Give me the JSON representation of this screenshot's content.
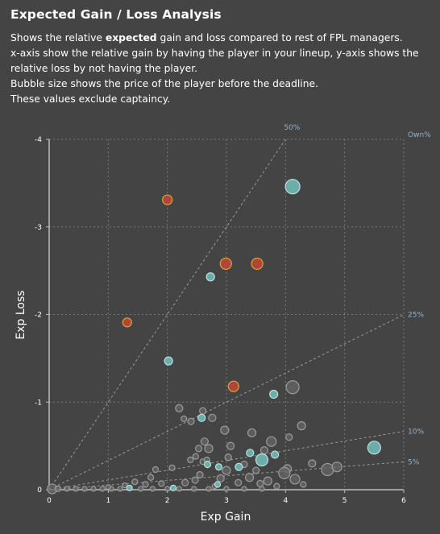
{
  "header": {
    "title": "Expected Gain / Loss Analysis",
    "desc_line1_pre": "Shows the relative ",
    "desc_line1_bold": "expected",
    "desc_line1_post": " gain and loss compared to rest of FPL managers.",
    "desc_line2": "x-axis show the relative gain by having the player in your lineup, y-axis shows the relative loss by not having the player.",
    "desc_line3": "Bubble size shows the price of the player before the deadline.",
    "desc_line4": "These values exclude captaincy."
  },
  "colors": {
    "background": "#444444",
    "grid": "#7a7a7a",
    "axis": "#bbbbbb",
    "own_line": "#9a9a9a",
    "own_label": "#8fb3c9",
    "red_fill": "#b5473a",
    "red_stroke": "#e0a23a",
    "teal_fill": "#6fb3b0",
    "teal_stroke": "#b8e0dd",
    "grey_fill": "#666666",
    "grey_stroke": "#9a9a9a"
  },
  "chart_data": {
    "type": "scatter",
    "xlabel": "Exp Gain",
    "ylabel": "Exp Loss",
    "xlim": [
      0,
      6
    ],
    "ylim": [
      0,
      -4
    ],
    "xticks": [
      0,
      1,
      2,
      3,
      4,
      5,
      6
    ],
    "yticks": [
      0,
      -1,
      -2,
      -3,
      -4
    ],
    "grid": true,
    "own_lines": [
      {
        "label": "50%",
        "slope": 1.0
      },
      {
        "label": "25%",
        "slope": 0.333
      },
      {
        "label": "10%",
        "slope": 0.111
      },
      {
        "label": "5%",
        "slope": 0.053
      }
    ],
    "own_axis_label": "Own%",
    "series": [
      {
        "kind": "red",
        "points": [
          {
            "x": 2.0,
            "y": -3.31,
            "s": 6.0
          },
          {
            "x": 2.99,
            "y": -2.58,
            "s": 7.0
          },
          {
            "x": 3.52,
            "y": -2.58,
            "s": 7.0
          },
          {
            "x": 1.32,
            "y": -1.91,
            "s": 5.5
          },
          {
            "x": 3.12,
            "y": -1.18,
            "s": 6.5
          }
        ]
      },
      {
        "kind": "teal",
        "points": [
          {
            "x": 4.12,
            "y": -3.46,
            "s": 9.0
          },
          {
            "x": 2.73,
            "y": -2.43,
            "s": 5.0
          },
          {
            "x": 2.02,
            "y": -1.47,
            "s": 5.0
          },
          {
            "x": 3.8,
            "y": -1.09,
            "s": 5.0
          },
          {
            "x": 5.5,
            "y": -0.48,
            "s": 8.0
          },
          {
            "x": 2.58,
            "y": -0.82,
            "s": 4.5
          },
          {
            "x": 3.6,
            "y": -0.34,
            "s": 7.5
          },
          {
            "x": 3.82,
            "y": -0.4,
            "s": 4.5
          },
          {
            "x": 3.4,
            "y": -0.42,
            "s": 4.5
          },
          {
            "x": 3.21,
            "y": -0.26,
            "s": 4.5
          },
          {
            "x": 2.87,
            "y": -0.26,
            "s": 4.0
          },
          {
            "x": 2.68,
            "y": -0.29,
            "s": 4.0
          },
          {
            "x": 2.85,
            "y": -0.06,
            "s": 3.5
          },
          {
            "x": 1.36,
            "y": -0.02,
            "s": 3.5
          },
          {
            "x": 2.1,
            "y": -0.02,
            "s": 3.5
          }
        ]
      },
      {
        "kind": "grey",
        "points": [
          {
            "x": 4.12,
            "y": -1.17,
            "s": 8.0
          },
          {
            "x": 2.2,
            "y": -0.93,
            "s": 4.5
          },
          {
            "x": 2.4,
            "y": -0.78,
            "s": 4.0
          },
          {
            "x": 2.28,
            "y": -0.81,
            "s": 3.5
          },
          {
            "x": 2.6,
            "y": -0.9,
            "s": 4.0
          },
          {
            "x": 2.76,
            "y": -0.82,
            "s": 4.5
          },
          {
            "x": 2.97,
            "y": -0.68,
            "s": 5.0
          },
          {
            "x": 3.43,
            "y": -0.65,
            "s": 5.0
          },
          {
            "x": 3.76,
            "y": -0.55,
            "s": 6.0
          },
          {
            "x": 4.27,
            "y": -0.73,
            "s": 5.0
          },
          {
            "x": 4.06,
            "y": -0.6,
            "s": 4.0
          },
          {
            "x": 4.45,
            "y": -0.3,
            "s": 4.5
          },
          {
            "x": 4.71,
            "y": -0.23,
            "s": 7.5
          },
          {
            "x": 4.87,
            "y": -0.26,
            "s": 6.0
          },
          {
            "x": 4.03,
            "y": -0.24,
            "s": 5.0
          },
          {
            "x": 3.98,
            "y": -0.19,
            "s": 7.0
          },
          {
            "x": 4.16,
            "y": -0.12,
            "s": 6.0
          },
          {
            "x": 3.7,
            "y": -0.1,
            "s": 5.0
          },
          {
            "x": 3.39,
            "y": -0.14,
            "s": 5.0
          },
          {
            "x": 3.0,
            "y": -0.22,
            "s": 5.0
          },
          {
            "x": 2.9,
            "y": -0.13,
            "s": 4.5
          },
          {
            "x": 2.53,
            "y": -0.47,
            "s": 4.0
          },
          {
            "x": 2.63,
            "y": -0.55,
            "s": 4.5
          },
          {
            "x": 2.7,
            "y": -0.47,
            "s": 5.0
          },
          {
            "x": 2.48,
            "y": -0.38,
            "s": 3.5
          },
          {
            "x": 2.39,
            "y": -0.34,
            "s": 3.5
          },
          {
            "x": 2.6,
            "y": -0.32,
            "s": 3.5
          },
          {
            "x": 2.67,
            "y": -0.34,
            "s": 3.5
          },
          {
            "x": 3.03,
            "y": -0.37,
            "s": 4.0
          },
          {
            "x": 3.07,
            "y": -0.5,
            "s": 4.5
          },
          {
            "x": 3.64,
            "y": -0.45,
            "s": 4.5
          },
          {
            "x": 3.3,
            "y": -0.29,
            "s": 4.0
          },
          {
            "x": 3.5,
            "y": -0.22,
            "s": 4.0
          },
          {
            "x": 2.08,
            "y": -0.25,
            "s": 3.5
          },
          {
            "x": 1.8,
            "y": -0.23,
            "s": 3.5
          },
          {
            "x": 1.72,
            "y": -0.14,
            "s": 3.5
          },
          {
            "x": 1.45,
            "y": -0.09,
            "s": 3.5
          },
          {
            "x": 1.63,
            "y": -0.06,
            "s": 3.5
          },
          {
            "x": 1.9,
            "y": -0.07,
            "s": 3.5
          },
          {
            "x": 2.3,
            "y": -0.08,
            "s": 4.0
          },
          {
            "x": 2.47,
            "y": -0.11,
            "s": 4.0
          },
          {
            "x": 2.55,
            "y": -0.17,
            "s": 4.0
          },
          {
            "x": 3.2,
            "y": -0.08,
            "s": 4.0
          },
          {
            "x": 3.57,
            "y": -0.07,
            "s": 4.0
          },
          {
            "x": 0.05,
            "y": -0.01,
            "s": 6.0
          },
          {
            "x": 0.15,
            "y": -0.01,
            "s": 3.5
          },
          {
            "x": 0.3,
            "y": -0.01,
            "s": 3.0
          },
          {
            "x": 0.45,
            "y": -0.01,
            "s": 3.0
          },
          {
            "x": 0.6,
            "y": -0.01,
            "s": 3.0
          },
          {
            "x": 0.75,
            "y": -0.01,
            "s": 3.0
          },
          {
            "x": 0.9,
            "y": -0.01,
            "s": 3.0
          },
          {
            "x": 1.05,
            "y": -0.01,
            "s": 3.0
          },
          {
            "x": 1.2,
            "y": -0.01,
            "s": 3.0
          },
          {
            "x": 1.55,
            "y": -0.01,
            "s": 3.0
          },
          {
            "x": 1.75,
            "y": -0.01,
            "s": 3.0
          },
          {
            "x": 2.0,
            "y": -0.01,
            "s": 3.0
          },
          {
            "x": 2.2,
            "y": -0.01,
            "s": 3.0
          },
          {
            "x": 2.45,
            "y": -0.01,
            "s": 3.0
          },
          {
            "x": 2.7,
            "y": -0.01,
            "s": 3.0
          },
          {
            "x": 3.0,
            "y": -0.01,
            "s": 3.0
          },
          {
            "x": 3.3,
            "y": -0.01,
            "s": 3.0
          },
          {
            "x": 3.6,
            "y": -0.01,
            "s": 3.0
          },
          {
            "x": 1.0,
            "y": -0.03,
            "s": 3.0
          },
          {
            "x": 1.28,
            "y": -0.05,
            "s": 3.0
          },
          {
            "x": 2.8,
            "y": -0.04,
            "s": 3.0
          },
          {
            "x": 3.85,
            "y": -0.04,
            "s": 3.5
          },
          {
            "x": 4.3,
            "y": -0.06,
            "s": 3.5
          }
        ]
      }
    ]
  }
}
